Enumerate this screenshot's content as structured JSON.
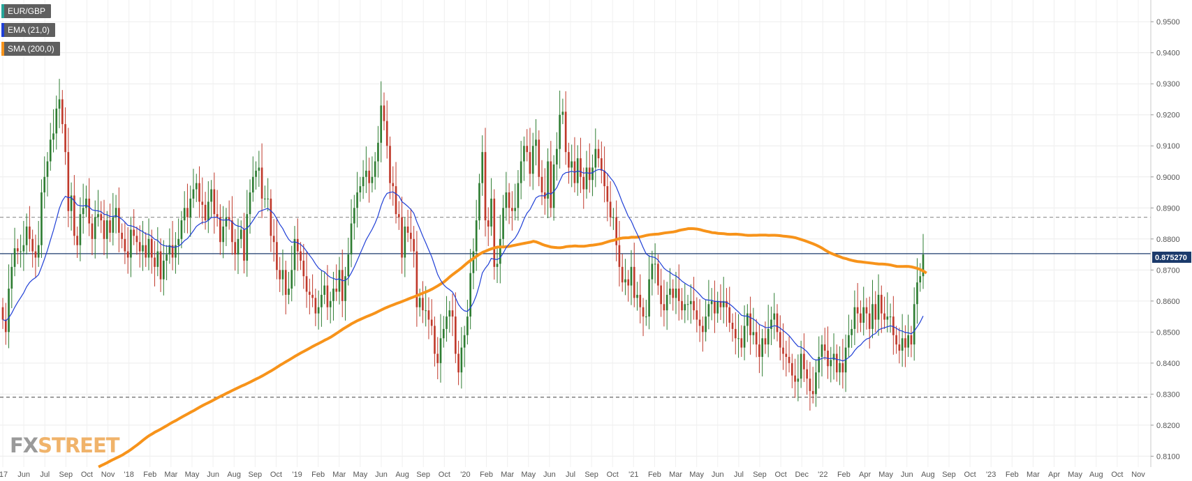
{
  "legend": [
    {
      "label": "EUR/GBP",
      "color": "#26a69a"
    },
    {
      "label": "EMA (21,0)",
      "color": "#1f3fd6"
    },
    {
      "label": "SMA (200,0)",
      "color": "#f7931a"
    }
  ],
  "logo": {
    "part1": "FX",
    "part2": "STREET"
  },
  "chart_data": {
    "type": "candlestick",
    "symbol": "EUR/GBP",
    "timeframe_shown": "weekly",
    "ylim": [
      0.8065,
      0.957
    ],
    "y_ticks": [
      "0.8100",
      "0.8200",
      "0.8300",
      "0.8400",
      "0.8500",
      "0.8600",
      "0.8700",
      "0.8800",
      "0.8900",
      "0.9000",
      "0.9100",
      "0.9200",
      "0.9300",
      "0.9400",
      "0.9500"
    ],
    "x_ticks": [
      "'17",
      "Jun",
      "Jul",
      "Sep",
      "Oct",
      "Nov",
      "'18",
      "Feb",
      "Mar",
      "May",
      "Jun",
      "Aug",
      "Sep",
      "Oct",
      "'19",
      "Feb",
      "Mar",
      "May",
      "Jun",
      "Aug",
      "Sep",
      "Oct",
      "'20",
      "Feb",
      "Mar",
      "May",
      "Jun",
      "Jul",
      "Sep",
      "Oct",
      "'21",
      "Feb",
      "Mar",
      "May",
      "Jun",
      "Jul",
      "Sep",
      "Oct",
      "Dec",
      "'22",
      "Feb",
      "Apr",
      "May",
      "Jun",
      "Aug",
      "Sep",
      "Oct",
      "'23",
      "Feb",
      "Mar",
      "Apr",
      "May",
      "Aug",
      "Oct",
      "Nov"
    ],
    "current_price": "0.875270",
    "horizontal_levels": [
      {
        "value": 0.887,
        "style": "dashed",
        "color": "#999999"
      },
      {
        "value": 0.829,
        "style": "dashed",
        "color": "#555555"
      },
      {
        "value": 0.87527,
        "style": "solid",
        "color": "#1b3a6b"
      }
    ],
    "up_color": "#2e7d32",
    "down_color": "#c0392b",
    "candles_close": [
      0.854,
      0.85,
      0.864,
      0.871,
      0.877,
      0.876,
      0.876,
      0.878,
      0.884,
      0.88,
      0.876,
      0.874,
      0.878,
      0.895,
      0.9,
      0.905,
      0.912,
      0.914,
      0.922,
      0.925,
      0.917,
      0.908,
      0.889,
      0.894,
      0.881,
      0.878,
      0.888,
      0.89,
      0.893,
      0.885,
      0.88,
      0.887,
      0.888,
      0.886,
      0.88,
      0.886,
      0.882,
      0.887,
      0.89,
      0.882,
      0.88,
      0.876,
      0.874,
      0.883,
      0.881,
      0.879,
      0.876,
      0.878,
      0.874,
      0.88,
      0.874,
      0.871,
      0.876,
      0.867,
      0.873,
      0.875,
      0.878,
      0.874,
      0.878,
      0.88,
      0.886,
      0.89,
      0.887,
      0.893,
      0.896,
      0.898,
      0.892,
      0.891,
      0.886,
      0.892,
      0.896,
      0.888,
      0.887,
      0.879,
      0.884,
      0.887,
      0.886,
      0.879,
      0.875,
      0.88,
      0.883,
      0.873,
      0.888,
      0.895,
      0.9,
      0.902,
      0.903,
      0.893,
      0.893,
      0.893,
      0.881,
      0.879,
      0.87,
      0.867,
      0.87,
      0.862,
      0.864,
      0.87,
      0.88,
      0.876,
      0.873,
      0.868,
      0.863,
      0.862,
      0.861,
      0.856,
      0.858,
      0.862,
      0.865,
      0.858,
      0.86,
      0.864,
      0.863,
      0.87,
      0.86,
      0.868,
      0.875,
      0.885,
      0.89,
      0.895,
      0.897,
      0.9,
      0.902,
      0.898,
      0.9,
      0.905,
      0.911,
      0.923,
      0.918,
      0.91,
      0.898,
      0.897,
      0.888,
      0.887,
      0.874,
      0.884,
      0.882,
      0.88,
      0.876,
      0.858,
      0.861,
      0.857,
      0.857,
      0.854,
      0.852,
      0.843,
      0.84,
      0.848,
      0.851,
      0.855,
      0.857,
      0.855,
      0.843,
      0.837,
      0.845,
      0.849,
      0.855,
      0.869,
      0.876,
      0.886,
      0.898,
      0.908,
      0.886,
      0.884,
      0.893,
      0.871,
      0.872,
      0.88,
      0.89,
      0.895,
      0.89,
      0.889,
      0.89,
      0.898,
      0.905,
      0.91,
      0.908,
      0.901,
      0.91,
      0.912,
      0.9,
      0.895,
      0.893,
      0.905,
      0.89,
      0.904,
      0.909,
      0.92,
      0.921,
      0.908,
      0.903,
      0.905,
      0.898,
      0.906,
      0.9,
      0.896,
      0.903,
      0.899,
      0.903,
      0.909,
      0.906,
      0.902,
      0.897,
      0.892,
      0.887,
      0.887,
      0.878,
      0.871,
      0.866,
      0.867,
      0.865,
      0.871,
      0.861,
      0.862,
      0.858,
      0.855,
      0.855,
      0.867,
      0.872,
      0.872,
      0.865,
      0.859,
      0.857,
      0.862,
      0.864,
      0.861,
      0.864,
      0.86,
      0.857,
      0.859,
      0.859,
      0.86,
      0.857,
      0.854,
      0.852,
      0.85,
      0.855,
      0.859,
      0.86,
      0.856,
      0.86,
      0.858,
      0.86,
      0.858,
      0.853,
      0.851,
      0.848,
      0.848,
      0.845,
      0.852,
      0.856,
      0.849,
      0.85,
      0.846,
      0.842,
      0.848,
      0.846,
      0.851,
      0.854,
      0.856,
      0.85,
      0.845,
      0.843,
      0.842,
      0.84,
      0.836,
      0.834,
      0.835,
      0.843,
      0.838,
      0.835,
      0.831,
      0.83,
      0.837,
      0.842,
      0.846,
      0.844,
      0.839,
      0.841,
      0.843,
      0.837,
      0.84,
      0.837,
      0.845,
      0.849,
      0.851,
      0.858,
      0.856,
      0.853,
      0.858,
      0.856,
      0.851,
      0.859,
      0.854,
      0.862,
      0.856,
      0.854,
      0.855,
      0.855,
      0.849,
      0.846,
      0.844,
      0.848,
      0.845,
      0.849,
      0.846,
      0.859,
      0.866,
      0.868,
      0.875
    ]
  }
}
